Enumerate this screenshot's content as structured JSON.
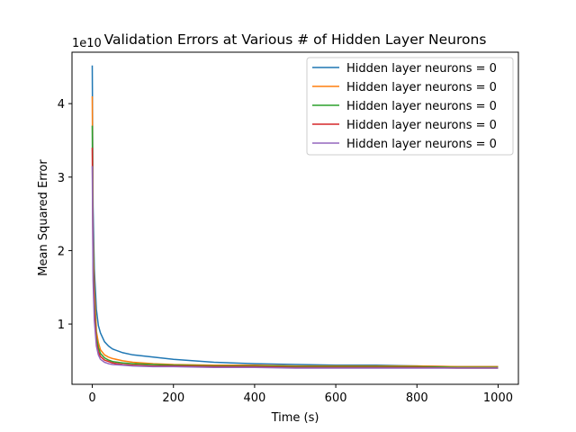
{
  "chart_data": {
    "type": "line",
    "title": "Validation Errors at Various # of Hidden Layer Neurons",
    "xlabel": "Time (s)",
    "ylabel": "Mean Squared Error",
    "y_offset_label": "1e10",
    "xlim": [
      -50,
      1050
    ],
    "ylim": [
      0.18,
      4.7
    ],
    "x_ticks": [
      0,
      200,
      400,
      600,
      800,
      1000
    ],
    "x_tick_labels": [
      "0",
      "200",
      "400",
      "600",
      "800",
      "1000"
    ],
    "y_ticks": [
      1,
      2,
      3,
      4
    ],
    "y_tick_labels": [
      "1",
      "2",
      "3",
      "4"
    ],
    "grid": false,
    "legend_position": "top-right",
    "x": [
      0,
      2,
      5,
      10,
      15,
      20,
      30,
      40,
      50,
      75,
      100,
      150,
      200,
      300,
      400,
      500,
      600,
      700,
      800,
      900,
      1000
    ],
    "series": [
      {
        "name": "Hidden layer neurons = 0",
        "color": "#1f77b4",
        "values": [
          4.52,
          2.6,
          1.75,
          1.2,
          0.98,
          0.88,
          0.76,
          0.7,
          0.66,
          0.61,
          0.58,
          0.55,
          0.52,
          0.48,
          0.46,
          0.45,
          0.44,
          0.44,
          0.43,
          0.42,
          0.42
        ]
      },
      {
        "name": "Hidden layer neurons = 0",
        "color": "#ff7f0e",
        "values": [
          4.1,
          2.2,
          1.5,
          0.9,
          0.75,
          0.65,
          0.58,
          0.55,
          0.53,
          0.5,
          0.48,
          0.46,
          0.45,
          0.44,
          0.44,
          0.43,
          0.43,
          0.43,
          0.43,
          0.42,
          0.42
        ]
      },
      {
        "name": "Hidden layer neurons = 0",
        "color": "#2ca02c",
        "values": [
          3.7,
          2.0,
          1.3,
          0.82,
          0.68,
          0.6,
          0.54,
          0.51,
          0.49,
          0.47,
          0.46,
          0.45,
          0.44,
          0.43,
          0.43,
          0.42,
          0.42,
          0.42,
          0.42,
          0.41,
          0.41
        ]
      },
      {
        "name": "Hidden layer neurons = 0",
        "color": "#d62728",
        "values": [
          3.4,
          1.8,
          1.2,
          0.75,
          0.62,
          0.56,
          0.51,
          0.49,
          0.47,
          0.45,
          0.44,
          0.43,
          0.43,
          0.42,
          0.42,
          0.41,
          0.41,
          0.41,
          0.41,
          0.4,
          0.4
        ]
      },
      {
        "name": "Hidden layer neurons = 0",
        "color": "#9467bd",
        "values": [
          3.15,
          1.6,
          1.05,
          0.7,
          0.58,
          0.52,
          0.48,
          0.46,
          0.45,
          0.44,
          0.43,
          0.42,
          0.42,
          0.41,
          0.41,
          0.4,
          0.4,
          0.4,
          0.4,
          0.4,
          0.4
        ]
      }
    ]
  }
}
